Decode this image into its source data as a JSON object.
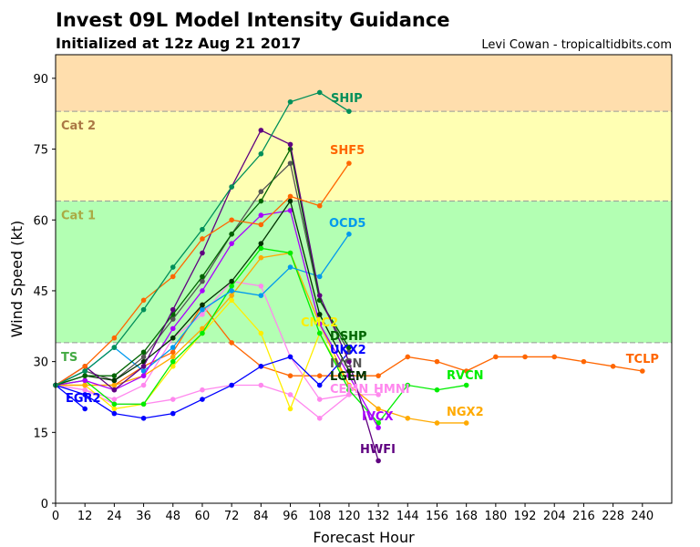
{
  "title": "Invest 09L Model Intensity Guidance",
  "subtitle": "Initialized at 12z Aug 21 2017",
  "credit": "Levi Cowan - tropicaltidbits.com",
  "chart_data": {
    "type": "line",
    "xlabel": "Forecast Hour",
    "ylabel": "Wind Speed (kt)",
    "xlim": [
      0,
      252
    ],
    "ylim": [
      0,
      95
    ],
    "xticks": [
      0,
      12,
      24,
      36,
      48,
      60,
      72,
      84,
      96,
      108,
      120,
      132,
      144,
      156,
      168,
      180,
      192,
      204,
      216,
      228,
      240
    ],
    "yticks": [
      0,
      15,
      30,
      45,
      60,
      75,
      90
    ],
    "bands": [
      {
        "name": "TS",
        "from": 34,
        "to": 64,
        "color": "#b3ffb3",
        "label_color": "#44aa44"
      },
      {
        "name": "Cat 1",
        "from": 64,
        "to": 83,
        "color": "#ffffb3",
        "label_color": "#aaaa44"
      },
      {
        "name": "Cat 2",
        "from": 83,
        "to": 95,
        "color": "#ffdead",
        "label_color": "#aa7744"
      }
    ],
    "series": [
      {
        "name": "TCLP",
        "color": "#ff6600",
        "x": [
          0,
          12,
          24,
          36,
          48,
          60,
          72,
          84,
          96,
          108,
          120,
          132,
          144,
          156,
          168,
          180,
          192,
          204,
          216,
          228,
          240
        ],
        "y": [
          25,
          25,
          25,
          29,
          32,
          42,
          34,
          29,
          27,
          27,
          27,
          27,
          31,
          30,
          28,
          31,
          31,
          31,
          30,
          29,
          28
        ]
      },
      {
        "name": "HMNI",
        "color": "#ff88ee",
        "x": [
          0,
          12,
          24,
          36,
          48,
          60,
          72,
          84,
          96,
          108,
          120,
          132
        ],
        "y": [
          25,
          24,
          21,
          21,
          22,
          24,
          25,
          25,
          23,
          18,
          23,
          23
        ]
      },
      {
        "name": "CEMN",
        "color": "#ff88ee",
        "x": [
          0,
          12,
          24,
          36,
          48,
          60,
          72,
          84,
          96,
          108,
          120
        ],
        "y": [
          25,
          24,
          22,
          25,
          35,
          40,
          47,
          46,
          31,
          22,
          23
        ]
      },
      {
        "name": "CMC2",
        "color": "#ffee00",
        "x": [
          0,
          12,
          24,
          36,
          48,
          60,
          72,
          84,
          96,
          108,
          120
        ],
        "y": [
          25,
          25,
          20,
          21,
          29,
          36,
          43,
          36,
          20,
          36,
          25
        ]
      },
      {
        "name": "NGX2",
        "color": "#ffaa00",
        "x": [
          0,
          12,
          24,
          36,
          48,
          60,
          72,
          84,
          96,
          108,
          120,
          132,
          144,
          156,
          168
        ],
        "y": [
          25,
          25,
          25,
          27,
          31,
          37,
          44,
          52,
          53,
          38,
          25,
          20,
          18,
          17,
          17
        ]
      },
      {
        "name": "RVCN",
        "color": "#00ee00",
        "x": [
          0,
          12,
          24,
          36,
          48,
          60,
          72,
          84,
          96,
          108,
          120,
          132,
          144,
          156,
          168
        ],
        "y": [
          25,
          26,
          21,
          21,
          30,
          36,
          46,
          54,
          53,
          36,
          24,
          17,
          25,
          24,
          25
        ]
      },
      {
        "name": "UKX2",
        "color": "#0000ff",
        "x": [
          0,
          12,
          24,
          36,
          48,
          60,
          72,
          84,
          96,
          108,
          120
        ],
        "y": [
          25,
          23,
          19,
          18,
          19,
          22,
          25,
          29,
          31,
          25,
          32
        ]
      },
      {
        "name": "EGR2",
        "color": "#0000ff",
        "x": [
          0,
          12
        ],
        "y": [
          25,
          20
        ]
      },
      {
        "name": "OCD5",
        "color": "#0099ee",
        "x": [
          0,
          12,
          24,
          36,
          48,
          60,
          72,
          84,
          96,
          108,
          120
        ],
        "y": [
          25,
          28,
          33,
          28,
          33,
          41,
          45,
          44,
          50,
          48,
          57
        ]
      },
      {
        "name": "IVCX",
        "color": "#aa00ff",
        "x": [
          0,
          12,
          24,
          36,
          48,
          60,
          72,
          84,
          96,
          108,
          120,
          132
        ],
        "y": [
          25,
          26,
          24,
          27,
          37,
          45,
          55,
          61,
          62,
          38,
          27,
          16
        ]
      },
      {
        "name": "IVCN",
        "color": "#555555",
        "x": [
          0,
          12,
          24,
          36,
          48,
          60,
          72,
          84,
          96,
          108,
          120
        ],
        "y": [
          25,
          28,
          26,
          31,
          39,
          47,
          57,
          66,
          72,
          43,
          32
        ]
      },
      {
        "name": "LGEM",
        "color": "#003300",
        "x": [
          0,
          12,
          24,
          36,
          48,
          60,
          72,
          84,
          96,
          108,
          120
        ],
        "y": [
          25,
          27,
          26,
          30,
          35,
          42,
          47,
          55,
          64,
          40,
          28
        ]
      },
      {
        "name": "DSHP",
        "color": "#006400",
        "x": [
          0,
          12,
          24,
          36,
          48,
          60,
          72,
          84,
          96,
          108,
          120
        ],
        "y": [
          25,
          27,
          27,
          32,
          40,
          48,
          57,
          64,
          75,
          43,
          33
        ]
      },
      {
        "name": "HWFI",
        "color": "#5f0080",
        "x": [
          0,
          12,
          24,
          36,
          48,
          60,
          72,
          84,
          96,
          108,
          120,
          132
        ],
        "y": [
          25,
          29,
          24,
          29,
          41,
          53,
          67,
          79,
          76,
          44,
          30,
          9
        ]
      },
      {
        "name": "SHF5",
        "color": "#ff6600",
        "x": [
          0,
          12,
          24,
          36,
          48,
          60,
          72,
          84,
          96,
          108,
          120
        ],
        "y": [
          25,
          29,
          35,
          43,
          48,
          56,
          60,
          59,
          65,
          63,
          72
        ]
      },
      {
        "name": "SHIP",
        "color": "#008f5a",
        "x": [
          0,
          12,
          24,
          36,
          48,
          60,
          72,
          84,
          96,
          108,
          120
        ],
        "y": [
          25,
          28,
          33,
          41,
          50,
          58,
          67,
          74,
          85,
          87,
          83
        ]
      }
    ]
  }
}
